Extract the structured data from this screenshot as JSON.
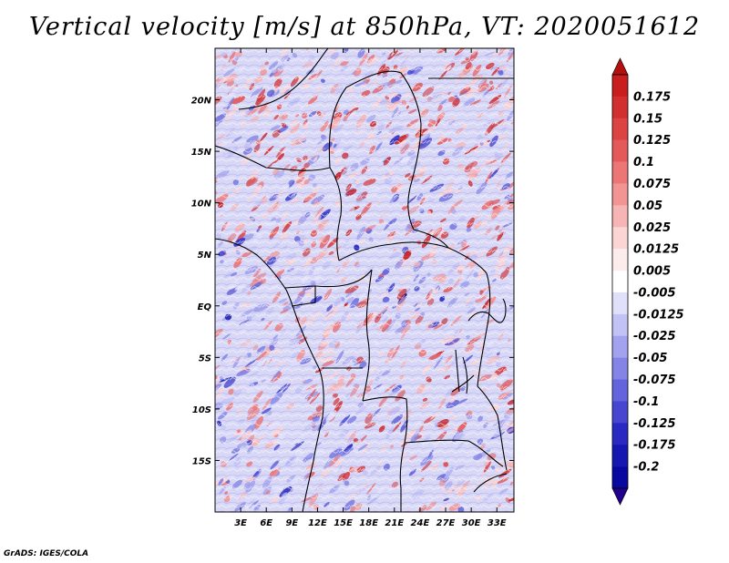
{
  "chart_data": {
    "type": "heatmap",
    "title": "Vertical velocity [m/s] at 850hPa, VT: 2020051612",
    "variable": "Vertical velocity",
    "units": "m/s",
    "level": "850hPa",
    "valid_time": "2020051612",
    "x_ticks": [
      "3E",
      "6E",
      "9E",
      "12E",
      "15E",
      "18E",
      "21E",
      "24E",
      "27E",
      "30E",
      "33E"
    ],
    "x_tick_values": [
      3,
      6,
      9,
      12,
      15,
      18,
      21,
      24,
      27,
      30,
      33
    ],
    "y_ticks": [
      "20N",
      "15N",
      "10N",
      "5N",
      "EQ",
      "5S",
      "10S",
      "15S"
    ],
    "y_tick_values": [
      20,
      15,
      10,
      5,
      0,
      -5,
      -10,
      -15
    ],
    "xlim": [
      0,
      35
    ],
    "ylim": [
      -20,
      25
    ],
    "colorbar": {
      "levels": [
        "0.175",
        "0.15",
        "0.125",
        "0.1",
        "0.075",
        "0.05",
        "0.025",
        "0.0125",
        "0.005",
        "-0.005",
        "-0.0125",
        "-0.025",
        "-0.05",
        "-0.075",
        "-0.1",
        "-0.125",
        "-0.175",
        "-0.2"
      ],
      "colors": [
        "#c81e1e",
        "#d23030",
        "#dc4444",
        "#e45a5a",
        "#ec7676",
        "#f29494",
        "#f7b4b4",
        "#fbd4d4",
        "#fdecec",
        "#ffffff",
        "#e0e0fb",
        "#c2c2f5",
        "#a2a2ee",
        "#8484e6",
        "#6464dc",
        "#4646d0",
        "#2a2ac2",
        "#1616b0",
        "#0808a0"
      ],
      "arrow_top_color": "#b41010",
      "arrow_bottom_color": "#20008c"
    }
  },
  "footer": "GrADS: IGES/COLA"
}
